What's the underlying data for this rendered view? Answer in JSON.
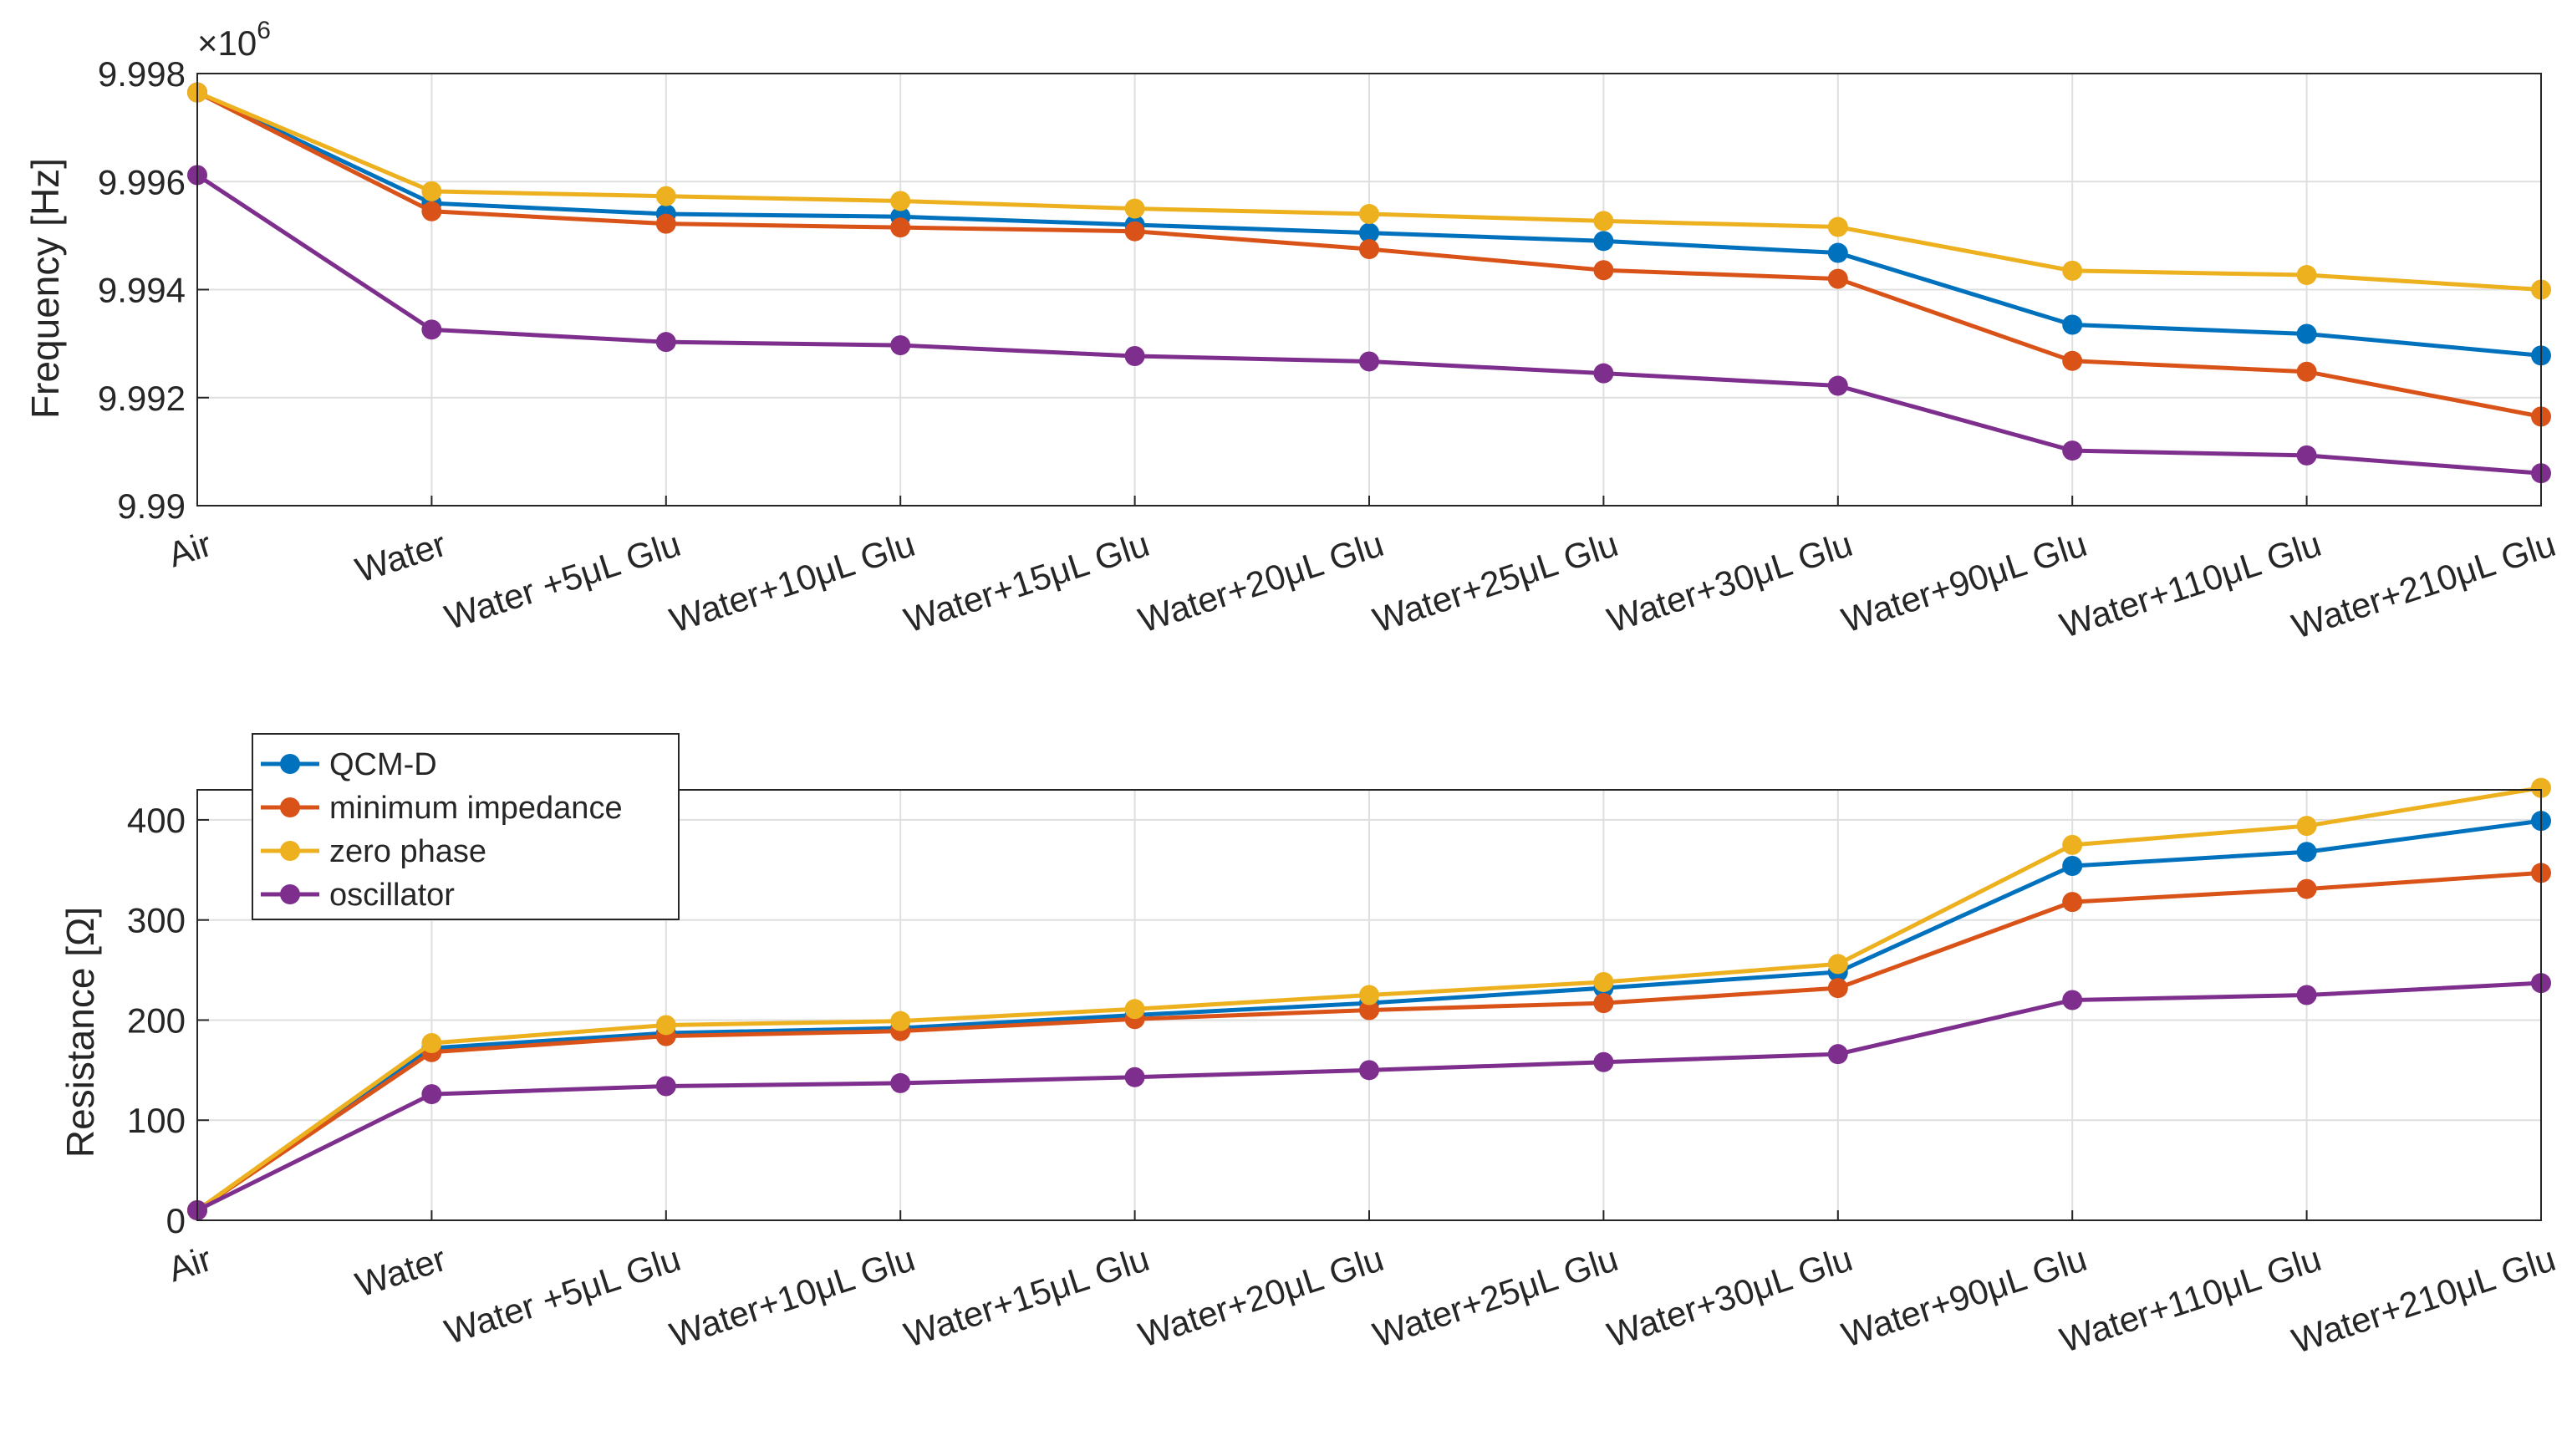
{
  "chart_data": [
    {
      "type": "line",
      "title": "",
      "xlabel": "",
      "ylabel": "Frequency [Hz]",
      "y_multiplier": "×10",
      "y_multiplier_exp": "6",
      "categories": [
        "Air",
        "Water",
        "Water +5μL Glu",
        "Water+10μL Glu",
        "Water+15μL Glu",
        "Water+20μL Glu",
        "Water+25μL Glu",
        "Water+30μL Glu",
        "Water+90μL Glu",
        "Water+110μL Glu",
        "Water+210μL Glu"
      ],
      "ylim": [
        9.99,
        9.998
      ],
      "yticks": [
        9.99,
        9.992,
        9.994,
        9.996,
        9.998
      ],
      "ytick_labels": [
        "9.99",
        "9.992",
        "9.994",
        "9.996",
        "9.998"
      ],
      "grid": true,
      "series": [
        {
          "name": "QCM-D",
          "color": "#0072BD",
          "values": [
            9.99765,
            9.9956,
            9.9954,
            9.99535,
            9.9952,
            9.99505,
            9.9949,
            9.99468,
            9.99335,
            9.99318,
            9.99278
          ]
        },
        {
          "name": "minimum impedance",
          "color": "#D95319",
          "values": [
            9.99765,
            9.99545,
            9.99522,
            9.99515,
            9.99508,
            9.99475,
            9.99436,
            9.9942,
            9.99268,
            9.99248,
            9.99165
          ]
        },
        {
          "name": "zero phase",
          "color": "#EDB120",
          "values": [
            9.99765,
            9.99582,
            9.99573,
            9.99564,
            9.9955,
            9.9954,
            9.99527,
            9.99516,
            9.99435,
            9.99427,
            9.994
          ]
        },
        {
          "name": "oscillator",
          "color": "#7E2F8E",
          "values": [
            9.99612,
            9.99326,
            9.99303,
            9.99297,
            9.99277,
            9.99267,
            9.99245,
            9.99222,
            9.99102,
            9.99093,
            9.9906
          ]
        }
      ]
    },
    {
      "type": "line",
      "title": "",
      "xlabel": "",
      "ylabel": "Resistance [Ω]",
      "categories": [
        "Air",
        "Water",
        "Water +5μL Glu",
        "Water+10μL Glu",
        "Water+15μL Glu",
        "Water+20μL Glu",
        "Water+25μL Glu",
        "Water+30μL Glu",
        "Water+90μL Glu",
        "Water+110μL Glu",
        "Water+210μL Glu"
      ],
      "ylim": [
        0,
        430
      ],
      "yticks": [
        0,
        100,
        200,
        300,
        400
      ],
      "ytick_labels": [
        "0",
        "100",
        "200",
        "300",
        "400"
      ],
      "grid": true,
      "legend_position": "top-left",
      "series": [
        {
          "name": "QCM-D",
          "color": "#0072BD",
          "values": [
            10,
            172,
            187,
            192,
            205,
            217,
            232,
            248,
            354,
            368,
            399
          ]
        },
        {
          "name": "minimum impedance",
          "color": "#D95319",
          "values": [
            10,
            168,
            184,
            189,
            201,
            210,
            217,
            232,
            318,
            331,
            347
          ]
        },
        {
          "name": "zero phase",
          "color": "#EDB120",
          "values": [
            10,
            177,
            195,
            199,
            211,
            225,
            238,
            256,
            375,
            394,
            432
          ]
        },
        {
          "name": "oscillator",
          "color": "#7E2F8E",
          "values": [
            10,
            126,
            134,
            137,
            143,
            150,
            158,
            166,
            220,
            225,
            237
          ]
        }
      ]
    }
  ]
}
